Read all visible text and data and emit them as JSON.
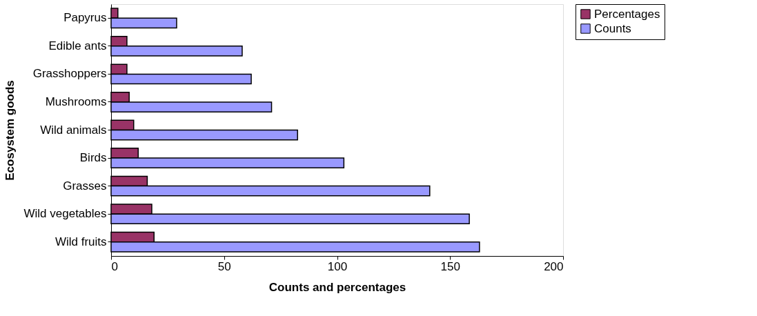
{
  "chart_data": {
    "type": "bar",
    "orientation": "horizontal",
    "xlabel": "Counts and percentages",
    "ylabel": "Ecosystem goods",
    "categories": [
      "Papyrus",
      "Edible ants",
      "Grasshoppers",
      "Mushrooms",
      "Wild animals",
      "Birds",
      "Grasses",
      "Wild vegetables",
      "Wild fruits"
    ],
    "series": [
      {
        "name": "Percentages",
        "color": "#993366",
        "values": [
          3,
          7,
          7,
          8,
          10,
          12,
          16,
          18,
          19
        ]
      },
      {
        "name": "Counts",
        "color": "#9999ff",
        "values": [
          29,
          58,
          62,
          71,
          82.5,
          103,
          141,
          158.5,
          163
        ]
      }
    ],
    "xlim": [
      0,
      200
    ],
    "xticks": [
      0,
      50,
      100,
      150,
      200
    ],
    "grid": false,
    "legend": "right"
  }
}
